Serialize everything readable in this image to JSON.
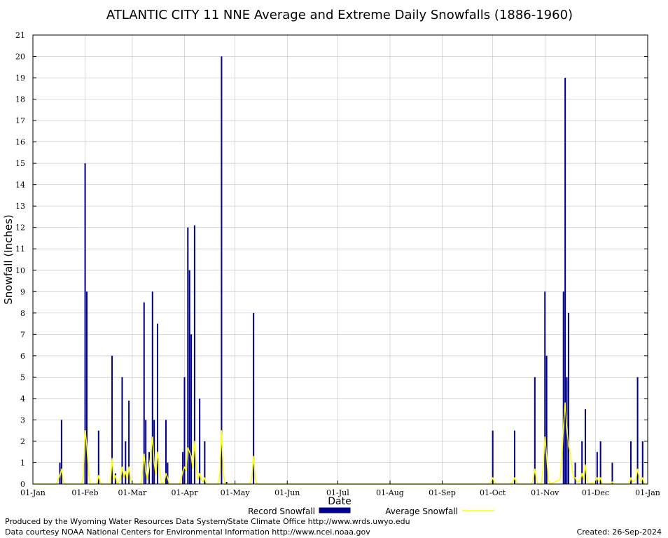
{
  "chart_data": {
    "type": "bar",
    "title": "ATLANTIC CITY 11 NNE Average and Extreme Daily Snowfalls (1886-1960)",
    "xlabel": "Date",
    "ylabel": "Snowfall (Inches)",
    "ylim": [
      0,
      21
    ],
    "xlim_days": [
      1,
      366
    ],
    "x_tick_labels": [
      "01-Jan",
      "01-Feb",
      "01-Mar",
      "01-Apr",
      "01-May",
      "01-Jun",
      "01-Jul",
      "01-Aug",
      "01-Sep",
      "01-Oct",
      "01-Nov",
      "01-Dec",
      "01-Jan"
    ],
    "y_ticks": [
      0,
      1,
      2,
      3,
      4,
      5,
      6,
      7,
      8,
      9,
      10,
      11,
      12,
      13,
      14,
      15,
      16,
      17,
      18,
      19,
      20,
      21
    ],
    "grid": true,
    "legend_placement": "bottom",
    "series": [
      {
        "name": "Record Snowfall",
        "kind": "bar",
        "color": "#00008b",
        "points": [
          {
            "x": "Jan 17",
            "y": 1.0
          },
          {
            "x": "Jan 18",
            "y": 3.0
          },
          {
            "x": "Feb 1",
            "y": 15.0
          },
          {
            "x": "Feb 2",
            "y": 9.0
          },
          {
            "x": "Feb 9",
            "y": 2.5
          },
          {
            "x": "Feb 17",
            "y": 6.0
          },
          {
            "x": "Feb 19",
            "y": 0.5
          },
          {
            "x": "Feb 23",
            "y": 5.0
          },
          {
            "x": "Feb 25",
            "y": 2.0
          },
          {
            "x": "Feb 27",
            "y": 3.9
          },
          {
            "x": "Mar 8",
            "y": 8.5
          },
          {
            "x": "Mar 9",
            "y": 3.0
          },
          {
            "x": "Mar 11",
            "y": 1.5
          },
          {
            "x": "Mar 13",
            "y": 9.0
          },
          {
            "x": "Mar 14",
            "y": 3.0
          },
          {
            "x": "Mar 16",
            "y": 7.5
          },
          {
            "x": "Mar 21",
            "y": 3.0
          },
          {
            "x": "Mar 22",
            "y": 1.0
          },
          {
            "x": "Mar 31",
            "y": 1.5
          },
          {
            "x": "Apr 1",
            "y": 5.0
          },
          {
            "x": "Apr 3",
            "y": 12.0
          },
          {
            "x": "Apr 4",
            "y": 10.0
          },
          {
            "x": "Apr 5",
            "y": 7.0
          },
          {
            "x": "Apr 7",
            "y": 12.1
          },
          {
            "x": "Apr 10",
            "y": 4.0
          },
          {
            "x": "Apr 13",
            "y": 2.0
          },
          {
            "x": "Apr 23",
            "y": 20.0
          },
          {
            "x": "Apr 26",
            "y": 0.1
          },
          {
            "x": "May 12",
            "y": 8.0
          },
          {
            "x": "Oct 1",
            "y": 2.5
          },
          {
            "x": "Oct 14",
            "y": 2.5
          },
          {
            "x": "Oct 26",
            "y": 5.0
          },
          {
            "x": "Nov 1",
            "y": 9.0
          },
          {
            "x": "Nov 2",
            "y": 6.0
          },
          {
            "x": "Nov 12",
            "y": 9.0
          },
          {
            "x": "Nov 13",
            "y": 19.0
          },
          {
            "x": "Nov 14",
            "y": 5.0
          },
          {
            "x": "Nov 15",
            "y": 8.0
          },
          {
            "x": "Nov 19",
            "y": 1.0
          },
          {
            "x": "Nov 23",
            "y": 2.0
          },
          {
            "x": "Nov 25",
            "y": 3.5
          },
          {
            "x": "Dec 2",
            "y": 1.5
          },
          {
            "x": "Dec 4",
            "y": 2.0
          },
          {
            "x": "Dec 11",
            "y": 1.0
          },
          {
            "x": "Dec 22",
            "y": 2.0
          },
          {
            "x": "Dec 26",
            "y": 5.0
          },
          {
            "x": "Dec 29",
            "y": 2.0
          }
        ]
      },
      {
        "name": "Average Snowfall",
        "kind": "line",
        "color": "#ffff00",
        "points": [
          {
            "x": "Jan 15",
            "y": 0.0
          },
          {
            "x": "Jan 17",
            "y": 0.4
          },
          {
            "x": "Jan 18",
            "y": 0.7
          },
          {
            "x": "Jan 19",
            "y": 0.1
          },
          {
            "x": "Jan 20",
            "y": 0.0
          },
          {
            "x": "Jan 30",
            "y": 0.0
          },
          {
            "x": "Jan 31",
            "y": 0.4
          },
          {
            "x": "Feb 1",
            "y": 2.5
          },
          {
            "x": "Feb 2",
            "y": 1.8
          },
          {
            "x": "Feb 3",
            "y": 0.6
          },
          {
            "x": "Feb 4",
            "y": 0.0
          },
          {
            "x": "Feb 8",
            "y": 0.0
          },
          {
            "x": "Feb 9",
            "y": 0.4
          },
          {
            "x": "Feb 10",
            "y": 0.1
          },
          {
            "x": "Feb 11",
            "y": 0.0
          },
          {
            "x": "Feb 16",
            "y": 0.0
          },
          {
            "x": "Feb 17",
            "y": 1.2
          },
          {
            "x": "Feb 18",
            "y": 0.2
          },
          {
            "x": "Feb 19",
            "y": 0.4
          },
          {
            "x": "Feb 20",
            "y": 0.0
          },
          {
            "x": "Feb 22",
            "y": 0.2
          },
          {
            "x": "Feb 23",
            "y": 0.8
          },
          {
            "x": "Feb 24",
            "y": 0.3
          },
          {
            "x": "Feb 25",
            "y": 0.6
          },
          {
            "x": "Feb 26",
            "y": 0.2
          },
          {
            "x": "Feb 27",
            "y": 0.8
          },
          {
            "x": "Feb 28",
            "y": 0.2
          },
          {
            "x": "Mar 1",
            "y": 0.0
          },
          {
            "x": "Mar 6",
            "y": 0.0
          },
          {
            "x": "Mar 7",
            "y": 0.4
          },
          {
            "x": "Mar 8",
            "y": 1.4
          },
          {
            "x": "Mar 9",
            "y": 0.6
          },
          {
            "x": "Mar 10",
            "y": 0.2
          },
          {
            "x": "Mar 11",
            "y": 0.8
          },
          {
            "x": "Mar 12",
            "y": 1.4
          },
          {
            "x": "Mar 13",
            "y": 2.2
          },
          {
            "x": "Mar 14",
            "y": 1.0
          },
          {
            "x": "Mar 15",
            "y": 0.4
          },
          {
            "x": "Mar 16",
            "y": 1.5
          },
          {
            "x": "Mar 17",
            "y": 0.8
          },
          {
            "x": "Mar 18",
            "y": 0.2
          },
          {
            "x": "Mar 19",
            "y": 0.0
          },
          {
            "x": "Mar 20",
            "y": 0.1
          },
          {
            "x": "Mar 21",
            "y": 0.5
          },
          {
            "x": "Mar 22",
            "y": 0.3
          },
          {
            "x": "Mar 23",
            "y": 0.0
          },
          {
            "x": "Mar 29",
            "y": 0.0
          },
          {
            "x": "Mar 30",
            "y": 0.2
          },
          {
            "x": "Mar 31",
            "y": 0.6
          },
          {
            "x": "Apr 1",
            "y": 0.8
          },
          {
            "x": "Apr 2",
            "y": 0.6
          },
          {
            "x": "Apr 3",
            "y": 1.7
          },
          {
            "x": "Apr 4",
            "y": 1.5
          },
          {
            "x": "Apr 5",
            "y": 1.3
          },
          {
            "x": "Apr 6",
            "y": 0.7
          },
          {
            "x": "Apr 7",
            "y": 2.0
          },
          {
            "x": "Apr 8",
            "y": 0.8
          },
          {
            "x": "Apr 9",
            "y": 0.2
          },
          {
            "x": "Apr 10",
            "y": 0.5
          },
          {
            "x": "Apr 11",
            "y": 0.2
          },
          {
            "x": "Apr 12",
            "y": 0.1
          },
          {
            "x": "Apr 13",
            "y": 0.3
          },
          {
            "x": "Apr 14",
            "y": 0.0
          },
          {
            "x": "Apr 21",
            "y": 0.0
          },
          {
            "x": "Apr 22",
            "y": 0.5
          },
          {
            "x": "Apr 23",
            "y": 2.5
          },
          {
            "x": "Apr 24",
            "y": 0.6
          },
          {
            "x": "Apr 25",
            "y": 0.0
          },
          {
            "x": "May 10",
            "y": 0.0
          },
          {
            "x": "May 11",
            "y": 0.3
          },
          {
            "x": "May 12",
            "y": 1.3
          },
          {
            "x": "May 13",
            "y": 0.3
          },
          {
            "x": "May 14",
            "y": 0.0
          },
          {
            "x": "Sep 29",
            "y": 0.0
          },
          {
            "x": "Sep 30",
            "y": 0.1
          },
          {
            "x": "Oct 1",
            "y": 0.3
          },
          {
            "x": "Oct 2",
            "y": 0.1
          },
          {
            "x": "Oct 3",
            "y": 0.0
          },
          {
            "x": "Oct 12",
            "y": 0.0
          },
          {
            "x": "Oct 13",
            "y": 0.1
          },
          {
            "x": "Oct 14",
            "y": 0.3
          },
          {
            "x": "Oct 15",
            "y": 0.1
          },
          {
            "x": "Oct 16",
            "y": 0.0
          },
          {
            "x": "Oct 24",
            "y": 0.0
          },
          {
            "x": "Oct 25",
            "y": 0.2
          },
          {
            "x": "Oct 26",
            "y": 0.7
          },
          {
            "x": "Oct 27",
            "y": 0.2
          },
          {
            "x": "Oct 28",
            "y": 0.0
          },
          {
            "x": "Oct 30",
            "y": 0.0
          },
          {
            "x": "Oct 31",
            "y": 0.8
          },
          {
            "x": "Nov 1",
            "y": 2.2
          },
          {
            "x": "Nov 2",
            "y": 1.3
          },
          {
            "x": "Nov 3",
            "y": 0.2
          },
          {
            "x": "Nov 4",
            "y": 0.0
          },
          {
            "x": "Nov 10",
            "y": 0.2
          },
          {
            "x": "Nov 11",
            "y": 1.2
          },
          {
            "x": "Nov 12",
            "y": 2.7
          },
          {
            "x": "Nov 13",
            "y": 3.8
          },
          {
            "x": "Nov 14",
            "y": 2.6
          },
          {
            "x": "Nov 15",
            "y": 1.8
          },
          {
            "x": "Nov 16",
            "y": 1.5
          },
          {
            "x": "Nov 17",
            "y": 0.8
          },
          {
            "x": "Nov 18",
            "y": 0.3
          },
          {
            "x": "Nov 19",
            "y": 0.3
          },
          {
            "x": "Nov 20",
            "y": 0.1
          },
          {
            "x": "Nov 21",
            "y": 0.1
          },
          {
            "x": "Nov 22",
            "y": 0.2
          },
          {
            "x": "Nov 23",
            "y": 0.5
          },
          {
            "x": "Nov 24",
            "y": 0.2
          },
          {
            "x": "Nov 25",
            "y": 0.9
          },
          {
            "x": "Nov 26",
            "y": 0.2
          },
          {
            "x": "Nov 27",
            "y": 0.0
          },
          {
            "x": "Dec 1",
            "y": 0.1
          },
          {
            "x": "Dec 2",
            "y": 0.3
          },
          {
            "x": "Dec 3",
            "y": 0.1
          },
          {
            "x": "Dec 4",
            "y": 0.3
          },
          {
            "x": "Dec 5",
            "y": 0.0
          },
          {
            "x": "Dec 10",
            "y": 0.0
          },
          {
            "x": "Dec 11",
            "y": 0.1
          },
          {
            "x": "Dec 12",
            "y": 0.0
          },
          {
            "x": "Dec 21",
            "y": 0.0
          },
          {
            "x": "Dec 22",
            "y": 0.3
          },
          {
            "x": "Dec 23",
            "y": 0.1
          },
          {
            "x": "Dec 25",
            "y": 0.2
          },
          {
            "x": "Dec 26",
            "y": 0.7
          },
          {
            "x": "Dec 27",
            "y": 0.3
          },
          {
            "x": "Dec 28",
            "y": 0.1
          },
          {
            "x": "Dec 29",
            "y": 0.3
          },
          {
            "x": "Dec 30",
            "y": 0.0
          }
        ]
      }
    ]
  },
  "footer": {
    "produced_by": "Produced by the Wyoming Water Resources Data System/State Climate Office http://www.wrds.uwyo.edu",
    "courtesy": "Data courtesy NOAA National Centers for Environmental Information http://www.ncei.noaa.gov",
    "created": "Created:  26-Sep-2024"
  }
}
